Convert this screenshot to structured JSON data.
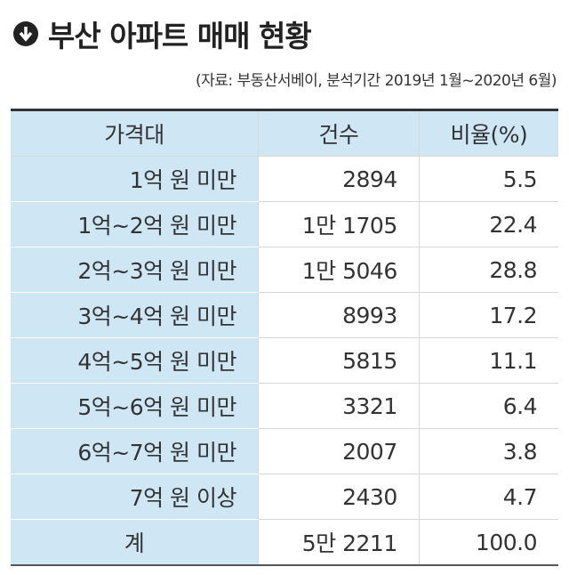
{
  "header": {
    "title": "부산 아파트 매매 현황",
    "source": "(자료: 부동산서베이, 분석기간 2019년 1월~2020년 6월)"
  },
  "table": {
    "columns": [
      "가격대",
      "건수",
      "비율(%)"
    ],
    "rows": [
      [
        "1억 원 미만",
        "2894",
        "5.5"
      ],
      [
        "1억~2억 원 미만",
        "1만 1705",
        "22.4"
      ],
      [
        "2억~3억 원 미만",
        "1만 5046",
        "28.8"
      ],
      [
        "3억~4억 원 미만",
        "8993",
        "17.2"
      ],
      [
        "4억~5억 원 미만",
        "5815",
        "11.1"
      ],
      [
        "5억~6억 원 미만",
        "3321",
        "6.4"
      ],
      [
        "6억~7억 원 미만",
        "2007",
        "3.8"
      ],
      [
        "7억 원 이상",
        "2430",
        "4.7"
      ],
      [
        "계",
        "5만 2211",
        "100.0"
      ]
    ]
  }
}
